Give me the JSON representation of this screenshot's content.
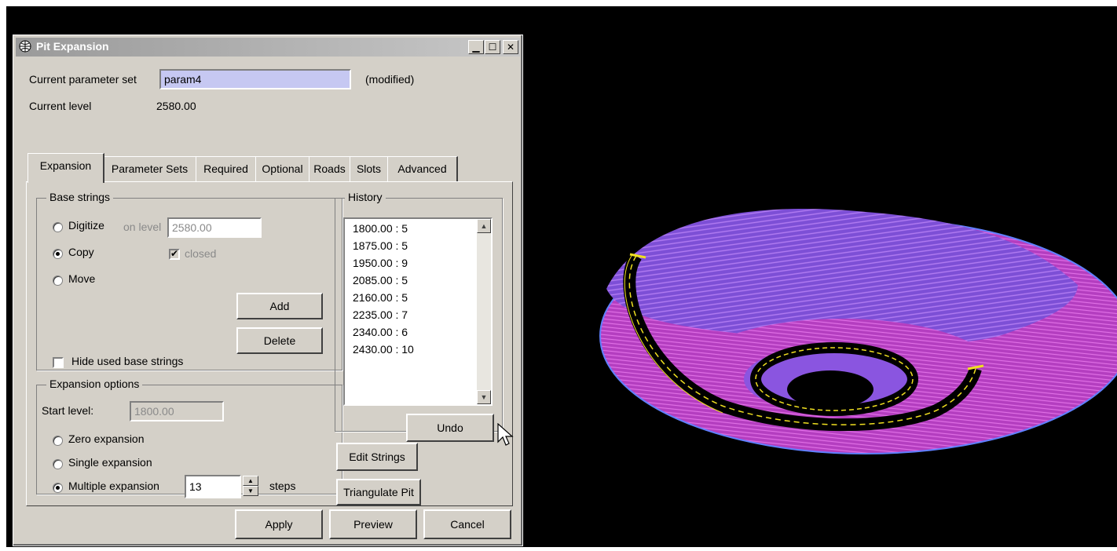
{
  "window": {
    "title": "Pit Expansion"
  },
  "header": {
    "param_set_label": "Current parameter set",
    "param_set_value": "param4",
    "modified": "(modified)",
    "level_label": "Current level",
    "level_value": "2580.00"
  },
  "tabs": [
    "Expansion",
    "Parameter Sets",
    "Required",
    "Optional",
    "Roads",
    "Slots",
    "Advanced"
  ],
  "base_strings": {
    "title": "Base strings",
    "digitize": "Digitize",
    "on_level_label": "on level",
    "on_level_value": "2580.00",
    "copy": "Copy",
    "closed": "closed",
    "move": "Move",
    "add": "Add",
    "delete": "Delete",
    "hide_used": "Hide used base strings"
  },
  "expansion_options": {
    "title": "Expansion options",
    "start_level_label": "Start level:",
    "start_level_value": "1800.00",
    "zero": "Zero expansion",
    "single": "Single expansion",
    "multiple": "Multiple expansion",
    "steps_value": "13",
    "steps_label": "steps"
  },
  "history": {
    "title": "History",
    "items": [
      "1800.00 : 5",
      "1875.00 : 5",
      "1950.00 : 9",
      "2085.00 : 5",
      "2160.00 : 5",
      "2235.00 : 7",
      "2340.00 : 6",
      "2430.00 : 10"
    ],
    "undo": "Undo"
  },
  "side_buttons": {
    "edit_strings": "Edit Strings",
    "triangulate": "Triangulate Pit"
  },
  "footer": {
    "apply": "Apply",
    "preview": "Preview",
    "cancel": "Cancel"
  },
  "colors": {
    "pit_magenta": "#c040c8",
    "pit_violet": "#8a55e0",
    "road_yellow": "#f0e020",
    "background": "#000000"
  }
}
